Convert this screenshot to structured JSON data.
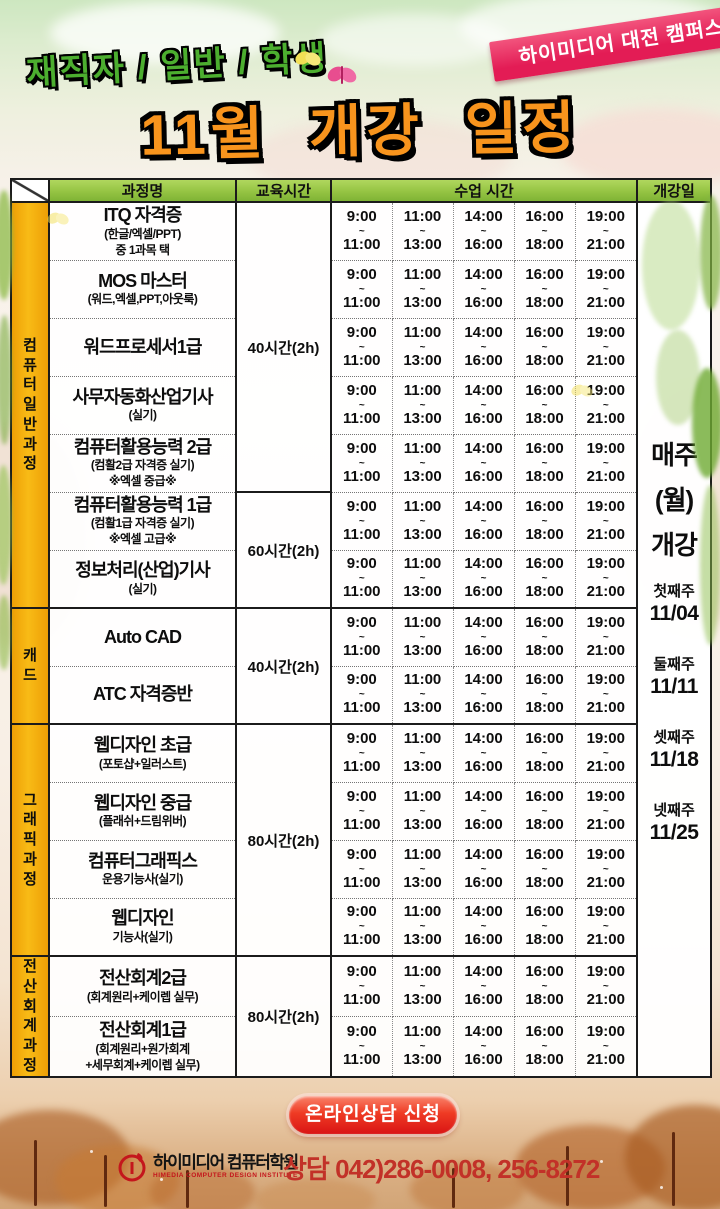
{
  "header": {
    "audience": "재직자 / 일반 / 학생",
    "campus_ribbon": "하이미디어 대전 캠퍼스",
    "title": "11월 개강 일정"
  },
  "table": {
    "headers": {
      "course": "과정명",
      "hours": "교육시간",
      "class_time": "수업 시간",
      "start_date": "개강일"
    },
    "tilde": "~",
    "time_slots": [
      {
        "from": "9:00",
        "to": "11:00"
      },
      {
        "from": "11:00",
        "to": "13:00"
      },
      {
        "from": "14:00",
        "to": "16:00"
      },
      {
        "from": "16:00",
        "to": "18:00"
      },
      {
        "from": "19:00",
        "to": "21:00"
      }
    ],
    "sections": [
      {
        "name": "컴퓨터일반과정",
        "courses": [
          {
            "title": "ITQ 자격증",
            "sub": [
              "(한글/엑셀/PPT)",
              "중 1과목 택"
            ]
          },
          {
            "title": "MOS 마스터",
            "sub": [
              "(워드,엑셀,PPT,아웃룩)"
            ]
          },
          {
            "title": "워드프로세서1급",
            "sub": []
          },
          {
            "title": "사무자동화산업기사",
            "sub": [
              "(실기)"
            ]
          },
          {
            "title": "컴퓨터활용능력 2급",
            "sub": [
              "(컴활2급 자격증 실기)",
              "※엑셀 중급※"
            ]
          },
          {
            "title": "컴퓨터활용능력 1급",
            "sub": [
              "(컴활1급 자격증 실기)",
              "※엑셀 고급※"
            ]
          },
          {
            "title": "정보처리(산업)기사",
            "sub": [
              "(실기)"
            ]
          }
        ]
      },
      {
        "name": "캐드",
        "courses": [
          {
            "title": "Auto CAD",
            "sub": []
          },
          {
            "title": "ATC 자격증반",
            "sub": []
          }
        ]
      },
      {
        "name": "그래픽과정",
        "courses": [
          {
            "title": "웹디자인 초급",
            "sub": [
              "(포토샵+일러스트)"
            ]
          },
          {
            "title": "웹디자인 중급",
            "sub": [
              "(플래쉬+드림위버)"
            ]
          },
          {
            "title": "컴퓨터그래픽스",
            "sub": [
              "운용기능사(실기)"
            ]
          },
          {
            "title": "웹디자인",
            "sub": [
              "기능사(실기)"
            ]
          }
        ]
      },
      {
        "name": "전산회계과정",
        "courses": [
          {
            "title": "전산회계2급",
            "sub": [
              "(회계원리+케이렙 실무)"
            ]
          },
          {
            "title": "전산회계1급",
            "sub": [
              "(회계원리+원가회계",
              "+세무회계+케이렙 실무)"
            ]
          }
        ]
      }
    ],
    "hour_groups": [
      {
        "row": 0,
        "span": 5,
        "label": "40시간(2h)"
      },
      {
        "row": 5,
        "span": 2,
        "label": "60시간(2h)"
      },
      {
        "row": 7,
        "span": 2,
        "label": "40시간(2h)"
      },
      {
        "row": 9,
        "span": 4,
        "label": "80시간(2h)"
      },
      {
        "row": 13,
        "span": 2,
        "label": "80시간(2h)"
      }
    ],
    "start_date_cell": {
      "headline": [
        "매주",
        "(월)",
        "개강"
      ],
      "weeks": [
        {
          "label": "첫째주",
          "date": "11/04"
        },
        {
          "label": "둘째주",
          "date": "11/11"
        },
        {
          "label": "셋째주",
          "date": "11/18"
        },
        {
          "label": "넷째주",
          "date": "11/25"
        }
      ]
    }
  },
  "footer": {
    "cta_button": "온라인상담 신청",
    "logo_kr": "하이미디어 컴퓨터학원",
    "logo_en": "HIMEDIA COMPUTER DESIGN INSTITUTE",
    "phone": "상담 042)286-0008, 256-8272"
  },
  "colors": {
    "header_green": "#7fb335",
    "sidebar_orange": "#f8bb16",
    "ribbon_pink": "#e31c55",
    "title_orange": "#f8941d",
    "audience_green": "#4cae2f",
    "button_red": "#d91414",
    "phone_red": "#c23128",
    "logo_red": "#c4161c"
  }
}
